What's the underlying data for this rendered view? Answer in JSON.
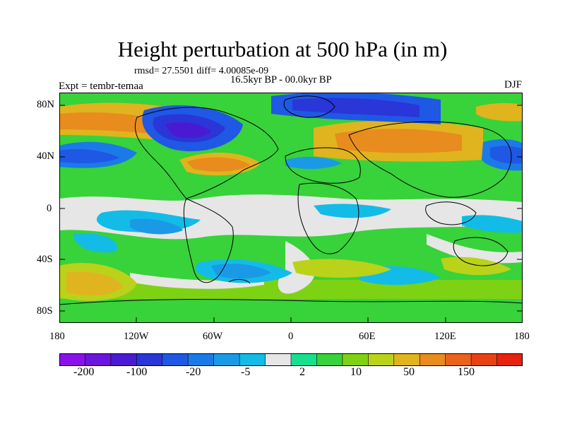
{
  "title": "Height perturbation at 500 hPa (in m)",
  "stats": "rmsd= 27.5501 diff= 4.00085e-09",
  "period": "16.5kyr BP - 00.0kyr BP",
  "expt": "Expt = tembr-temaa",
  "season": "DJF",
  "lat_labels": [
    "80N",
    "40N",
    "0",
    "40S",
    "80S"
  ],
  "lon_labels": [
    "180",
    "120W",
    "60W",
    "0",
    "60E",
    "120E",
    "180"
  ],
  "colorbar": {
    "colors": [
      "#8a12e8",
      "#6a16dc",
      "#4a1ad2",
      "#2a36d8",
      "#1f58e4",
      "#1b7ae8",
      "#1a9ae6",
      "#12bce6",
      "#e6e6e6",
      "#16e08e",
      "#38d23a",
      "#7ed214",
      "#bad21a",
      "#e0b41e",
      "#e88c1e",
      "#ea621c",
      "#e84214",
      "#e62210"
    ],
    "labels": [
      "-200",
      "-100",
      "-20",
      "-5",
      "2",
      "10",
      "50",
      "150"
    ]
  }
}
